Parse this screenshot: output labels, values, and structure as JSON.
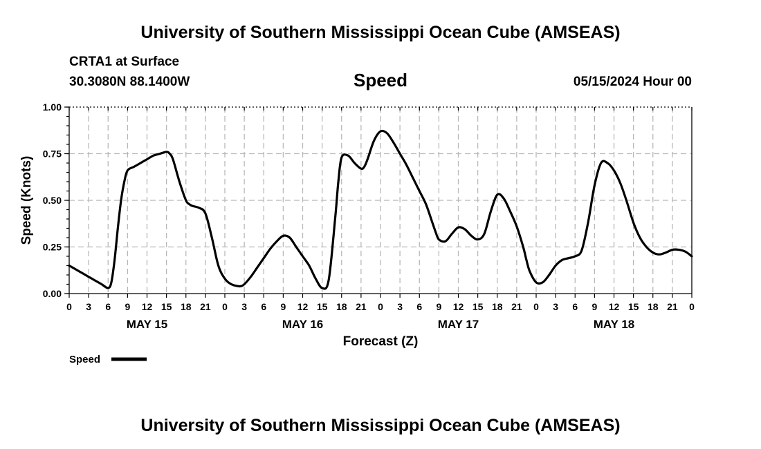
{
  "page": {
    "title_top": "University of Southern Mississippi Ocean Cube (AMSEAS)",
    "title_bottom": "University of Southern Mississippi Ocean Cube (AMSEAS)",
    "station_line": "CRTA1 at Surface",
    "coords_line": "30.3080N  88.1400W",
    "date_line": "05/15/2024 Hour 00"
  },
  "chart_data": {
    "type": "line",
    "title": "Speed",
    "xlabel": "Forecast (Z)",
    "ylabel": "Speed (Knots)",
    "ylim": [
      0,
      1
    ],
    "yticks": [
      0,
      0.25,
      0.5,
      0.75,
      1.0
    ],
    "ytick_labels": [
      "0.00",
      "0.25",
      "0.50",
      "0.75",
      "1.00"
    ],
    "xlim": [
      0,
      96
    ],
    "x_unit": "forecast hour",
    "xtick_step": 3,
    "xtick_labels": [
      "0",
      "3",
      "6",
      "9",
      "12",
      "15",
      "18",
      "21",
      "0",
      "3",
      "6",
      "9",
      "12",
      "15",
      "18",
      "21",
      "0",
      "3",
      "6",
      "9",
      "12",
      "15",
      "18",
      "21",
      "0",
      "3",
      "6",
      "9",
      "12",
      "15",
      "18",
      "21",
      "0"
    ],
    "day_labels": [
      {
        "label": "MAY 15",
        "x": 12
      },
      {
        "label": "MAY 16",
        "x": 36
      },
      {
        "label": "MAY 17",
        "x": 60
      },
      {
        "label": "MAY 18",
        "x": 84
      }
    ],
    "grid": true,
    "legend_position": "bottom-left",
    "series": [
      {
        "name": "Speed",
        "color": "#000000",
        "x": [
          0,
          1,
          2,
          3,
          4,
          5,
          6,
          6.5,
          7,
          7.5,
          8,
          8.5,
          9,
          10,
          11,
          12,
          13,
          14,
          15,
          15.5,
          16,
          17,
          18,
          18.5,
          19,
          20,
          21,
          22,
          23,
          24,
          25,
          26,
          26.5,
          27,
          28,
          29,
          30,
          31,
          32,
          33,
          34,
          35,
          36,
          37,
          38,
          39,
          40,
          41,
          41.5,
          42,
          43,
          44,
          45,
          45.5,
          46,
          47,
          48,
          49,
          50,
          51,
          52,
          53,
          54,
          55,
          56,
          56.5,
          57,
          58,
          59,
          60,
          61,
          62,
          63,
          64,
          65,
          66,
          67,
          68,
          69,
          70,
          70.5,
          71,
          72,
          73,
          74,
          75,
          76,
          77,
          78,
          79,
          80,
          81,
          82,
          83,
          84,
          85,
          86,
          87,
          88,
          89,
          90,
          91,
          92,
          93,
          94,
          95,
          96
        ],
        "values": [
          0.15,
          0.13,
          0.11,
          0.09,
          0.07,
          0.05,
          0.03,
          0.06,
          0.18,
          0.35,
          0.5,
          0.6,
          0.66,
          0.68,
          0.7,
          0.72,
          0.74,
          0.75,
          0.76,
          0.75,
          0.72,
          0.6,
          0.5,
          0.48,
          0.47,
          0.46,
          0.43,
          0.3,
          0.15,
          0.08,
          0.05,
          0.04,
          0.04,
          0.05,
          0.09,
          0.14,
          0.19,
          0.24,
          0.28,
          0.31,
          0.3,
          0.25,
          0.2,
          0.15,
          0.08,
          0.03,
          0.07,
          0.4,
          0.6,
          0.73,
          0.74,
          0.7,
          0.67,
          0.68,
          0.72,
          0.82,
          0.87,
          0.86,
          0.81,
          0.75,
          0.69,
          0.62,
          0.55,
          0.48,
          0.38,
          0.33,
          0.29,
          0.28,
          0.32,
          0.355,
          0.345,
          0.31,
          0.29,
          0.32,
          0.44,
          0.53,
          0.51,
          0.44,
          0.36,
          0.25,
          0.18,
          0.12,
          0.06,
          0.06,
          0.1,
          0.15,
          0.18,
          0.19,
          0.2,
          0.23,
          0.38,
          0.58,
          0.7,
          0.7,
          0.66,
          0.59,
          0.49,
          0.38,
          0.3,
          0.25,
          0.22,
          0.21,
          0.22,
          0.235,
          0.235,
          0.225,
          0.2
        ]
      }
    ]
  }
}
